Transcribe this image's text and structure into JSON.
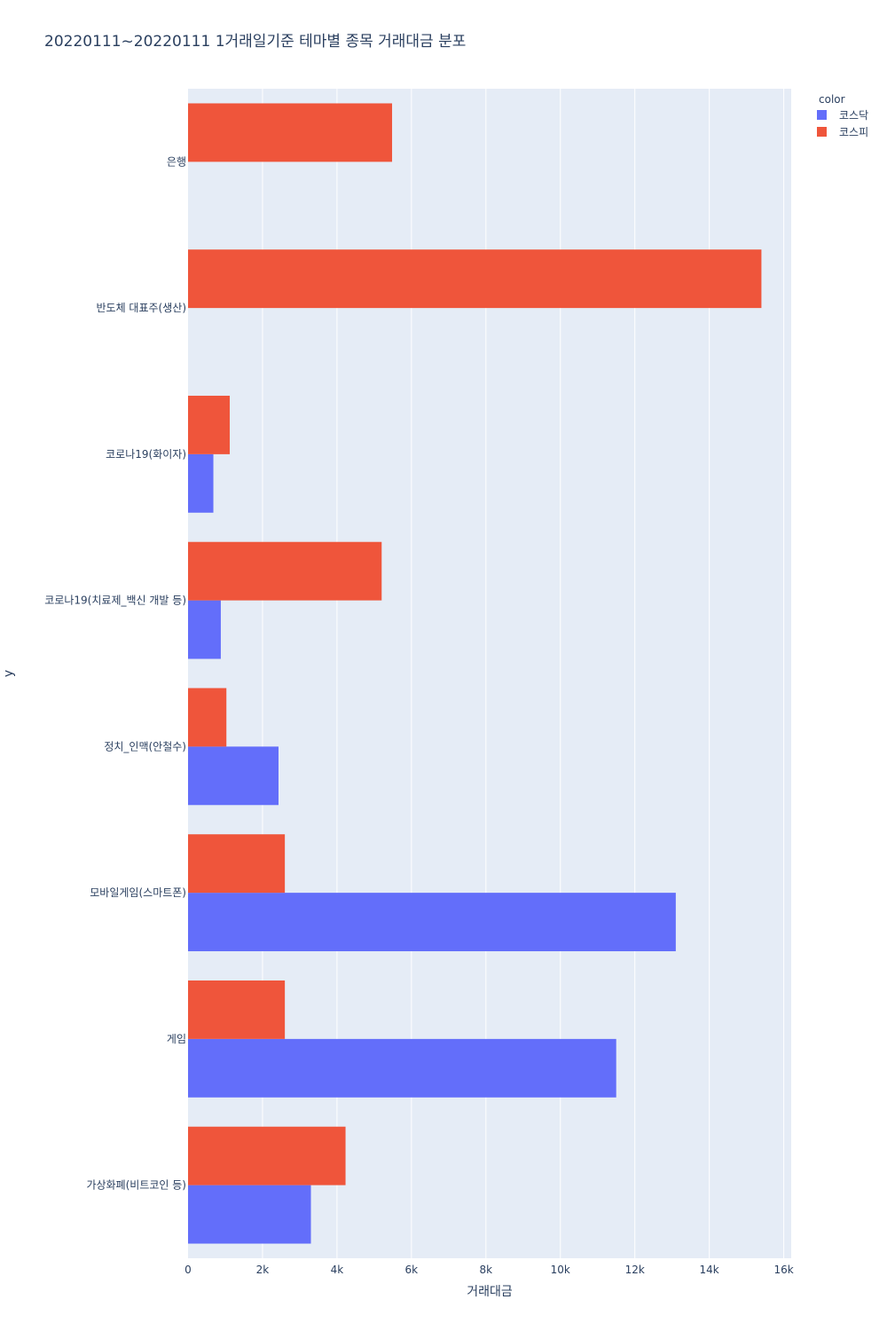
{
  "chart_data": {
    "type": "bar",
    "orientation": "horizontal",
    "barmode": "group",
    "title": "20220111~20220111 1거래일기준 테마별 종목 거래대금 분포",
    "xlabel": "거래대금",
    "ylabel": "y",
    "xlim": [
      0,
      16200
    ],
    "x_ticks": [
      0,
      2000,
      4000,
      6000,
      8000,
      10000,
      12000,
      14000,
      16000
    ],
    "x_tick_labels": [
      "0",
      "2k",
      "4k",
      "6k",
      "8k",
      "10k",
      "12k",
      "14k",
      "16k"
    ],
    "grid": true,
    "legend_title": "color",
    "legend_position": "top-right",
    "categories": [
      "은행",
      "반도체 대표주(생산)",
      "코로나19(화이자)",
      "코로나19(치료제_백신 개발 등)",
      "정치_인맥(안철수)",
      "모바일게임(스마트폰)",
      "게임",
      "가상화폐(비트코인 등)"
    ],
    "series": [
      {
        "name": "코스닥",
        "color": "#636efa",
        "values": [
          null,
          null,
          680,
          880,
          2430,
          13100,
          11500,
          3300
        ]
      },
      {
        "name": "코스피",
        "color": "#ef553b",
        "values": [
          5480,
          15400,
          1120,
          5200,
          1030,
          2600,
          2600,
          4230
        ]
      }
    ]
  }
}
